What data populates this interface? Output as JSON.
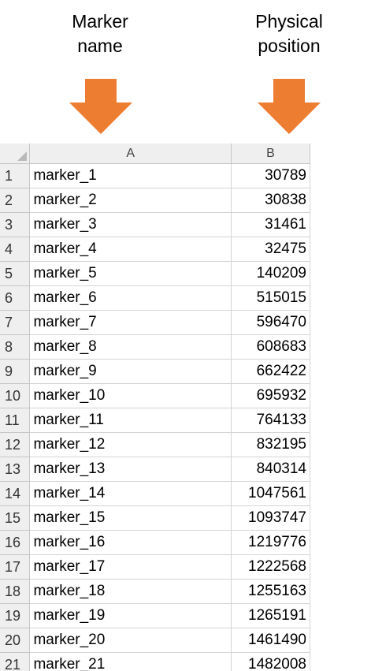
{
  "captions": {
    "col_a": [
      "Marker",
      "name"
    ],
    "col_b": [
      "Physical",
      "position"
    ]
  },
  "arrow_color": "#ED7D31",
  "sheet": {
    "column_headers": [
      "A",
      "B"
    ],
    "rows": [
      {
        "n": "1",
        "a": "marker_1",
        "b": "30789"
      },
      {
        "n": "2",
        "a": "marker_2",
        "b": "30838"
      },
      {
        "n": "3",
        "a": "marker_3",
        "b": "31461"
      },
      {
        "n": "4",
        "a": "marker_4",
        "b": "32475"
      },
      {
        "n": "5",
        "a": "marker_5",
        "b": "140209"
      },
      {
        "n": "6",
        "a": "marker_6",
        "b": "515015"
      },
      {
        "n": "7",
        "a": "marker_7",
        "b": "596470"
      },
      {
        "n": "8",
        "a": "marker_8",
        "b": "608683"
      },
      {
        "n": "9",
        "a": "marker_9",
        "b": "662422"
      },
      {
        "n": "10",
        "a": "marker_10",
        "b": "695932"
      },
      {
        "n": "11",
        "a": "marker_11",
        "b": "764133"
      },
      {
        "n": "12",
        "a": "marker_12",
        "b": "832195"
      },
      {
        "n": "13",
        "a": "marker_13",
        "b": "840314"
      },
      {
        "n": "14",
        "a": "marker_14",
        "b": "1047561"
      },
      {
        "n": "15",
        "a": "marker_15",
        "b": "1093747"
      },
      {
        "n": "16",
        "a": "marker_16",
        "b": "1219776"
      },
      {
        "n": "17",
        "a": "marker_17",
        "b": "1222568"
      },
      {
        "n": "18",
        "a": "marker_18",
        "b": "1255163"
      },
      {
        "n": "19",
        "a": "marker_19",
        "b": "1265191"
      },
      {
        "n": "20",
        "a": "marker_20",
        "b": "1461490"
      },
      {
        "n": "21",
        "a": "marker_21",
        "b": "1482008"
      }
    ]
  }
}
